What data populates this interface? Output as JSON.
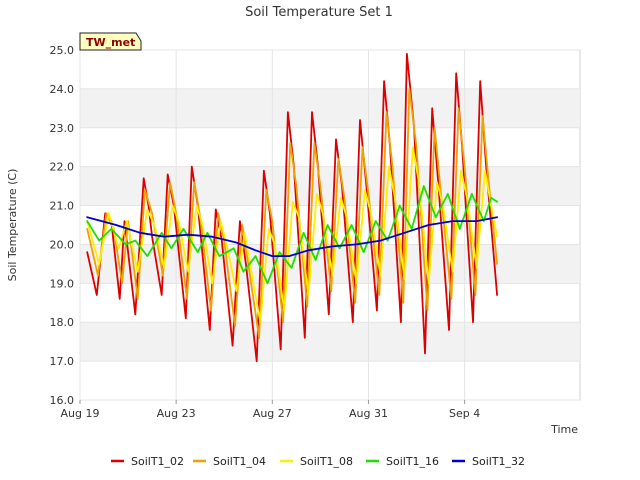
{
  "chart_data": {
    "type": "line",
    "title": "Soil Temperature Set 1",
    "xlabel": "Time",
    "ylabel": "Soil Temperature (C)",
    "ylim": [
      16.0,
      25.0
    ],
    "xlim": [
      0,
      20.8
    ],
    "yticks": [
      "16.0",
      "17.0",
      "18.0",
      "19.0",
      "20.0",
      "21.0",
      "22.0",
      "23.0",
      "24.0",
      "25.0"
    ],
    "xticks": [
      {
        "label": "Aug 19",
        "day": 0
      },
      {
        "label": "Aug 23",
        "day": 4
      },
      {
        "label": "Aug 27",
        "day": 8
      },
      {
        "label": "Aug 31",
        "day": 12
      },
      {
        "label": "Sep 4",
        "day": 16
      }
    ],
    "grid": true,
    "legend_position": "bottom",
    "badge": {
      "label": "TW_met",
      "background": "#ffffc0",
      "text_color": "#8b0000"
    },
    "series": [
      {
        "name": "SoilT1_02",
        "color": "#dd0000",
        "x": [
          0.3,
          0.7,
          1.05,
          1.3,
          1.65,
          1.85,
          2.3,
          2.65,
          2.85,
          3.0,
          3.4,
          3.65,
          3.9,
          4.4,
          4.65,
          4.9,
          5.4,
          5.65,
          5.9,
          6.35,
          6.65,
          6.9,
          7.35,
          7.65,
          7.9,
          8.35,
          8.65,
          8.9,
          9.35,
          9.65,
          9.9,
          10.35,
          10.65,
          10.9,
          11.35,
          11.65,
          11.9,
          12.35,
          12.65,
          12.9,
          13.35,
          13.6,
          13.9,
          14.35,
          14.65,
          14.9,
          15.35,
          15.65,
          15.9,
          16.35,
          16.65,
          16.9,
          17.35
        ],
        "y": [
          19.8,
          18.7,
          20.8,
          20.6,
          18.6,
          20.6,
          18.2,
          21.7,
          21.0,
          20.2,
          18.7,
          21.8,
          21.0,
          18.1,
          22.0,
          21.0,
          17.8,
          20.9,
          20.1,
          17.4,
          20.6,
          19.5,
          17.0,
          21.9,
          20.8,
          17.3,
          23.4,
          22.0,
          17.6,
          23.4,
          22.0,
          18.2,
          22.7,
          21.5,
          18.0,
          23.2,
          21.6,
          18.3,
          24.2,
          22.5,
          18.0,
          24.9,
          23.0,
          17.2,
          23.5,
          21.6,
          17.8,
          24.4,
          22.5,
          18.0,
          24.2,
          22.0,
          18.7
        ]
      },
      {
        "name": "SoilT1_04",
        "color": "#f0a000",
        "x": [
          0.3,
          0.75,
          1.1,
          1.4,
          1.75,
          2.0,
          2.4,
          2.7,
          3.0,
          3.45,
          3.75,
          4.0,
          4.45,
          4.75,
          5.0,
          5.45,
          5.75,
          6.0,
          6.45,
          6.75,
          7.0,
          7.45,
          7.75,
          8.0,
          8.45,
          8.75,
          9.0,
          9.45,
          9.75,
          10.0,
          10.45,
          10.75,
          11.0,
          11.45,
          11.75,
          12.0,
          12.45,
          12.75,
          13.0,
          13.45,
          13.7,
          14.0,
          14.45,
          14.75,
          15.0,
          15.45,
          15.75,
          16.0,
          16.45,
          16.75,
          17.0,
          17.35
        ],
        "y": [
          20.4,
          19.2,
          20.8,
          20.4,
          19.0,
          20.6,
          18.6,
          21.4,
          20.8,
          19.2,
          21.6,
          20.8,
          18.6,
          21.6,
          20.7,
          18.3,
          20.8,
          20.1,
          17.9,
          20.5,
          19.5,
          17.6,
          21.4,
          20.6,
          18.0,
          22.6,
          21.5,
          18.4,
          22.6,
          21.5,
          18.8,
          22.2,
          21.2,
          18.5,
          22.5,
          21.3,
          18.7,
          23.4,
          22.0,
          18.5,
          24.0,
          22.5,
          18.3,
          23.0,
          21.4,
          18.6,
          23.5,
          22.0,
          18.7,
          23.3,
          21.6,
          19.5
        ]
      },
      {
        "name": "SoilT1_08",
        "color": "#ffee00",
        "x": [
          0.3,
          0.8,
          1.2,
          1.6,
          1.95,
          2.4,
          2.8,
          3.1,
          3.5,
          3.85,
          4.1,
          4.5,
          4.85,
          5.1,
          5.5,
          5.85,
          6.1,
          6.5,
          6.85,
          7.1,
          7.5,
          7.85,
          8.1,
          8.5,
          8.85,
          9.1,
          9.5,
          9.85,
          10.1,
          10.5,
          10.85,
          11.1,
          11.5,
          11.85,
          12.1,
          12.5,
          12.85,
          13.1,
          13.5,
          13.85,
          14.1,
          14.5,
          14.85,
          15.1,
          15.5,
          15.85,
          16.1,
          16.5,
          16.85,
          17.1,
          17.35
        ],
        "y": [
          20.6,
          19.5,
          20.8,
          19.9,
          20.6,
          19.3,
          20.9,
          20.5,
          19.4,
          21.0,
          20.6,
          19.3,
          21.0,
          20.5,
          19.0,
          20.6,
          20.0,
          18.8,
          20.3,
          19.4,
          18.0,
          20.4,
          20.0,
          18.3,
          21.1,
          20.7,
          18.7,
          21.3,
          20.8,
          19.2,
          21.2,
          20.7,
          19.0,
          21.4,
          20.8,
          19.2,
          22.0,
          21.2,
          19.1,
          22.5,
          21.6,
          19.0,
          21.6,
          21.0,
          19.3,
          21.9,
          21.2,
          19.4,
          21.9,
          21.0,
          20.2
        ]
      },
      {
        "name": "SoilT1_16",
        "color": "#22dd00",
        "x": [
          0.3,
          0.8,
          1.3,
          1.9,
          2.3,
          2.8,
          3.4,
          3.8,
          4.3,
          4.9,
          5.3,
          5.8,
          6.4,
          6.8,
          7.3,
          7.8,
          8.3,
          8.8,
          9.3,
          9.8,
          10.3,
          10.8,
          11.3,
          11.8,
          12.3,
          12.8,
          13.3,
          13.8,
          14.3,
          14.8,
          15.3,
          15.8,
          16.3,
          16.8,
          17.1,
          17.35
        ],
        "y": [
          20.6,
          20.1,
          20.4,
          20.0,
          20.1,
          19.7,
          20.3,
          19.9,
          20.4,
          19.8,
          20.3,
          19.7,
          19.9,
          19.3,
          19.7,
          19.0,
          19.8,
          19.4,
          20.3,
          19.6,
          20.5,
          19.9,
          20.5,
          19.8,
          20.6,
          20.1,
          21.0,
          20.4,
          21.5,
          20.7,
          21.3,
          20.4,
          21.3,
          20.6,
          21.2,
          21.1
        ]
      },
      {
        "name": "SoilT1_32",
        "color": "#0000cc",
        "x": [
          0.3,
          1.5,
          2.5,
          3.5,
          4.5,
          5.5,
          6.5,
          7.3,
          8.0,
          8.7,
          9.5,
          10.5,
          11.5,
          12.5,
          13.5,
          14.5,
          15.5,
          16.5,
          17.35
        ],
        "y": [
          20.7,
          20.5,
          20.3,
          20.2,
          20.25,
          20.2,
          20.05,
          19.85,
          19.7,
          19.7,
          19.85,
          19.95,
          20.0,
          20.1,
          20.3,
          20.5,
          20.6,
          20.6,
          20.7
        ]
      }
    ]
  }
}
